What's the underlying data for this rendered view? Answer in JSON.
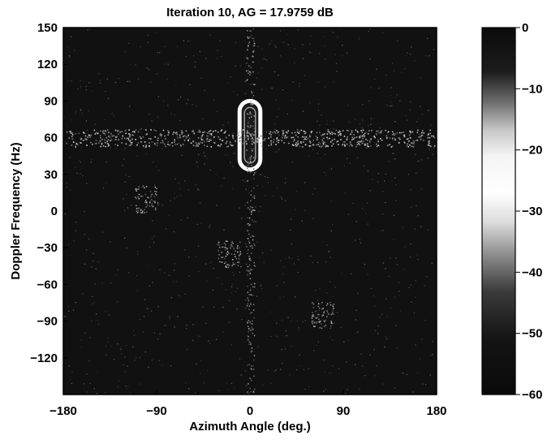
{
  "chart_data": {
    "type": "heatmap",
    "title": "Iteration 10, AG = 17.9759 dB",
    "xlabel": "Azimuth Angle (deg.)",
    "ylabel": "Doppler Frequency (Hz)",
    "xlim": [
      -180,
      180
    ],
    "ylim": [
      -150,
      150
    ],
    "xticks": [
      -180,
      -90,
      0,
      90,
      180
    ],
    "xtick_labels": [
      "−180",
      "−90",
      "0",
      "90",
      "180"
    ],
    "yticks": [
      150,
      120,
      90,
      60,
      30,
      0,
      -30,
      -60,
      -90,
      -120
    ],
    "ytick_labels": [
      "150",
      "120",
      "90",
      "60",
      "30",
      "0",
      "−30",
      "−60",
      "−90",
      "−120"
    ],
    "colorbar": {
      "range": [
        -60,
        0
      ],
      "ticks": [
        0,
        -10,
        -20,
        -30,
        -40,
        -50,
        -60
      ],
      "tick_labels": [
        "0",
        "−10",
        "−20",
        "−30",
        "−40",
        "−50",
        "−60"
      ],
      "colormap": "dark-bright-dark grayscale (peak brightness near -25 dB)"
    },
    "features": [
      {
        "kind": "mainbeam-contour",
        "azimuth_center": 0,
        "doppler_center": 62,
        "azimuth_halfwidth": 10,
        "doppler_halfwidth": 28
      },
      {
        "kind": "clutter-ridge",
        "doppler": 60,
        "azimuth_range": [
          -180,
          180
        ]
      },
      {
        "kind": "sidelobe-ridge",
        "azimuth": 0,
        "doppler_range": [
          -150,
          150
        ]
      },
      {
        "kind": "speckle-cluster",
        "azimuth": 70,
        "doppler": -85
      },
      {
        "kind": "speckle-cluster",
        "azimuth": -20,
        "doppler": -35
      },
      {
        "kind": "speckle-cluster",
        "azimuth": -100,
        "doppler": 10
      }
    ],
    "grid": false,
    "background": "#111111"
  }
}
